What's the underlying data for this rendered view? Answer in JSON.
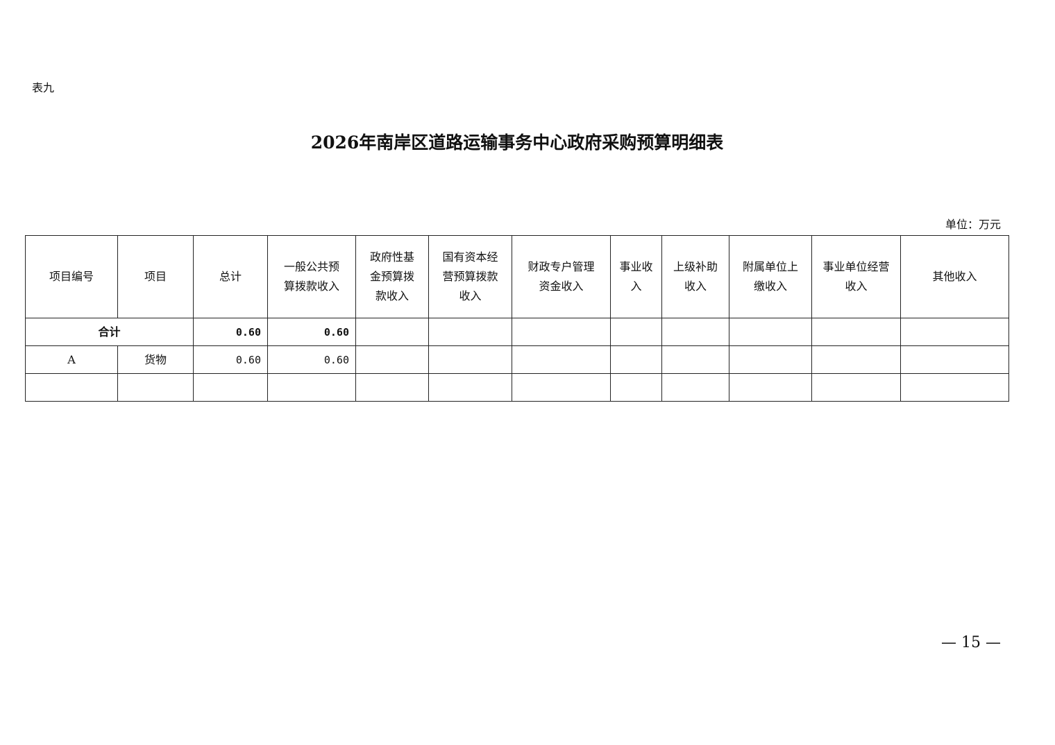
{
  "doc": {
    "label": "表九",
    "title": "2026年南岸区道路运输事务中心政府采购预算明细表",
    "unit": "单位：万元",
    "page_number": "— 15 —"
  },
  "table": {
    "headers": [
      "项目编号",
      "项目",
      "总计",
      "一般公共预\n算拨款收入",
      "政府性基\n金预算拨\n款收入",
      "国有资本经\n营预算拨款\n收入",
      "财政专户管理\n资金收入",
      "事业收\n入",
      "上级补助\n收入",
      "附属单位上\n缴收入",
      "事业单位经营\n收入",
      "其他收入"
    ],
    "total_row": {
      "label": "合计",
      "total": "0.60",
      "general_budget": "0.60"
    },
    "rows": [
      {
        "code": "A",
        "item": "货物",
        "total": "0.60",
        "general_budget": "0.60"
      }
    ]
  }
}
